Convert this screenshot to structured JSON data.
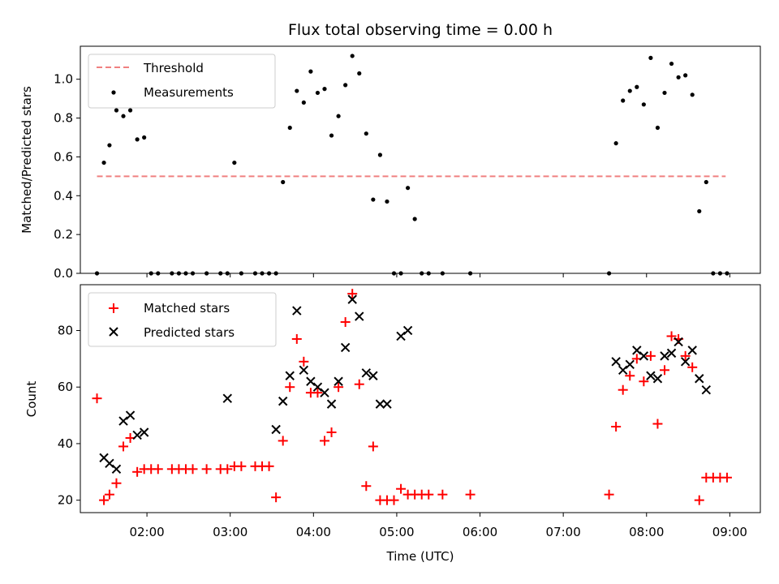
{
  "title": "Flux total observing time = 0.00 h",
  "chart_data": [
    {
      "type": "scatter",
      "ylabel": "Matched/Predicted stars",
      "xlim": [
        "01:12",
        "09:22"
      ],
      "ylim": [
        0,
        1.17
      ],
      "yticks": [
        "0.0",
        "0.2",
        "0.4",
        "0.6",
        "0.8",
        "1.0"
      ],
      "grid": false,
      "legend": "top-left",
      "threshold": {
        "name": "Threshold",
        "value": 0.5,
        "x_range": [
          "01:24",
          "08:57"
        ],
        "color": "#f08080"
      },
      "series": [
        {
          "name": "Measurements",
          "color": "#000000",
          "x": [
            "01:24",
            "01:29",
            "01:33",
            "01:38",
            "01:43",
            "01:48",
            "01:53",
            "01:58",
            "02:03",
            "02:08",
            "02:18",
            "02:23",
            "02:28",
            "02:33",
            "02:43",
            "02:53",
            "02:58",
            "03:03",
            "03:08",
            "03:18",
            "03:23",
            "03:28",
            "03:33",
            "03:38",
            "03:43",
            "03:48",
            "03:53",
            "03:58",
            "04:03",
            "04:08",
            "04:13",
            "04:18",
            "04:23",
            "04:28",
            "04:33",
            "04:38",
            "04:43",
            "04:48",
            "04:53",
            "04:58",
            "05:03",
            "05:08",
            "05:13",
            "05:18",
            "05:23",
            "05:33",
            "05:53",
            "07:33",
            "07:38",
            "07:43",
            "07:48",
            "07:53",
            "07:58",
            "08:03",
            "08:08",
            "08:13",
            "08:18",
            "08:23",
            "08:28",
            "08:33",
            "08:38",
            "08:43",
            "08:48",
            "08:53",
            "08:58"
          ],
          "y": [
            0.0,
            0.57,
            0.66,
            0.84,
            0.81,
            0.84,
            0.69,
            0.7,
            0.0,
            0.0,
            0.0,
            0.0,
            0.0,
            0.0,
            0.0,
            0.0,
            0.0,
            0.57,
            0.0,
            0.0,
            0.0,
            0.0,
            0.0,
            0.47,
            0.75,
            0.94,
            0.88,
            1.04,
            0.93,
            0.95,
            0.71,
            0.81,
            0.97,
            1.12,
            1.03,
            0.72,
            0.38,
            0.61,
            0.37,
            0.0,
            0.0,
            0.44,
            0.28,
            0.0,
            0.0,
            0.0,
            0.0,
            0.0,
            0.67,
            0.89,
            0.94,
            0.96,
            0.87,
            1.11,
            0.75,
            0.93,
            1.08,
            1.01,
            1.02,
            0.92,
            0.32,
            0.47,
            0.0,
            0.0,
            0.0
          ]
        }
      ]
    },
    {
      "type": "scatter",
      "xlabel": "Time (UTC)",
      "ylabel": "Count",
      "xlim": [
        "01:12",
        "09:22"
      ],
      "ylim": [
        15.6,
        96.2
      ],
      "xticks": [
        "02:00",
        "03:00",
        "04:00",
        "05:00",
        "06:00",
        "07:00",
        "08:00",
        "09:00"
      ],
      "yticks": [
        "20",
        "40",
        "60",
        "80"
      ],
      "grid": false,
      "legend": "top-left",
      "series": [
        {
          "name": "Matched stars",
          "marker": "+",
          "color": "#ff0000",
          "x": [
            "01:24",
            "01:29",
            "01:33",
            "01:38",
            "01:43",
            "01:48",
            "01:53",
            "01:58",
            "02:03",
            "02:08",
            "02:18",
            "02:23",
            "02:28",
            "02:33",
            "02:43",
            "02:53",
            "02:58",
            "03:03",
            "03:08",
            "03:18",
            "03:23",
            "03:28",
            "03:33",
            "03:38",
            "03:43",
            "03:48",
            "03:53",
            "03:58",
            "04:03",
            "04:08",
            "04:13",
            "04:18",
            "04:23",
            "04:28",
            "04:33",
            "04:38",
            "04:43",
            "04:48",
            "04:53",
            "04:58",
            "05:03",
            "05:08",
            "05:13",
            "05:18",
            "05:23",
            "05:33",
            "05:53",
            "07:33",
            "07:38",
            "07:43",
            "07:48",
            "07:53",
            "07:58",
            "08:03",
            "08:08",
            "08:13",
            "08:18",
            "08:23",
            "08:28",
            "08:33",
            "08:38",
            "08:43",
            "08:48",
            "08:53",
            "08:58"
          ],
          "y": [
            56,
            20,
            22,
            26,
            39,
            42,
            30,
            31,
            31,
            31,
            31,
            31,
            31,
            31,
            31,
            31,
            31,
            32,
            32,
            32,
            32,
            32,
            21,
            41,
            60,
            77,
            69,
            58,
            58,
            41,
            44,
            60,
            83,
            93,
            61,
            25,
            39,
            20,
            20,
            20,
            24,
            22,
            22,
            22,
            22,
            22,
            22,
            22,
            46,
            59,
            64,
            70,
            62,
            71,
            47,
            66,
            78,
            77,
            71,
            67,
            20,
            28,
            28,
            28,
            28
          ]
        },
        {
          "name": "Predicted stars",
          "marker": "x",
          "color": "#000000",
          "x": [
            "01:29",
            "01:33",
            "01:38",
            "01:43",
            "01:48",
            "01:53",
            "01:58",
            "02:58",
            "03:33",
            "03:38",
            "03:43",
            "03:48",
            "03:53",
            "03:58",
            "04:03",
            "04:08",
            "04:13",
            "04:18",
            "04:23",
            "04:28",
            "04:33",
            "04:38",
            "04:43",
            "04:48",
            "04:53",
            "05:03",
            "05:08",
            "07:38",
            "07:43",
            "07:48",
            "07:53",
            "07:58",
            "08:03",
            "08:08",
            "08:13",
            "08:18",
            "08:23",
            "08:28",
            "08:33",
            "08:38",
            "08:43"
          ],
          "y": [
            35,
            33,
            31,
            48,
            50,
            43,
            44,
            56,
            45,
            55,
            64,
            87,
            66,
            62,
            60,
            58,
            54,
            62,
            74,
            91,
            85,
            65,
            64,
            54,
            54,
            78,
            80,
            69,
            66,
            68,
            73,
            71,
            64,
            63,
            71,
            72,
            76,
            69,
            73,
            63,
            59
          ]
        }
      ]
    }
  ]
}
